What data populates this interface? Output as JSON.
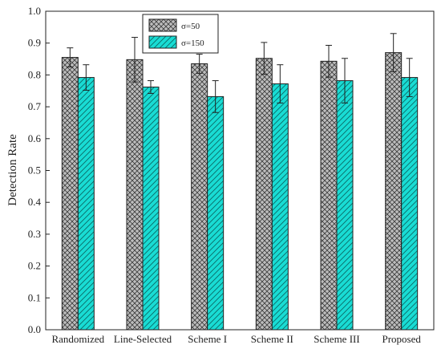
{
  "chart_data": {
    "type": "bar",
    "ylabel": "Detection Rate",
    "xlabel": "",
    "ylim": [
      0.0,
      1.0
    ],
    "yticks": [
      "0.0",
      "0.1",
      "0.2",
      "0.3",
      "0.4",
      "0.5",
      "0.6",
      "0.7",
      "0.8",
      "0.9",
      "1.0"
    ],
    "categories": [
      "Randomized",
      "Line-Selected",
      "Scheme I",
      "Scheme II",
      "Scheme III",
      "Proposed"
    ],
    "series": [
      {
        "name": "σ=50",
        "values": [
          0.855,
          0.848,
          0.835,
          0.852,
          0.843,
          0.87
        ],
        "errors": [
          0.03,
          0.07,
          0.03,
          0.05,
          0.05,
          0.06
        ],
        "color": "#b9b9b9",
        "pattern": "crosshatch"
      },
      {
        "name": "σ=150",
        "values": [
          0.792,
          0.762,
          0.732,
          0.772,
          0.782,
          0.792
        ],
        "errors": [
          0.04,
          0.02,
          0.05,
          0.06,
          0.07,
          0.06
        ],
        "color": "#19dcd4",
        "pattern": "diagonal"
      }
    ],
    "legend_position": "top-left",
    "grid": false
  }
}
